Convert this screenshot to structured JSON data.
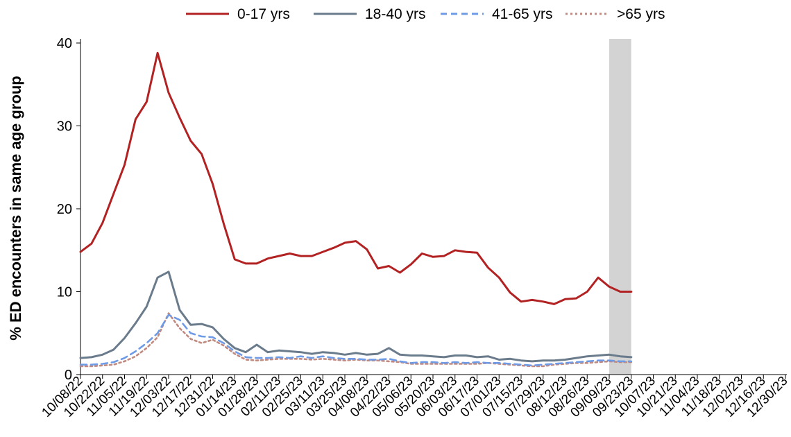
{
  "chart_data": {
    "type": "line",
    "title": "",
    "xlabel": "",
    "ylabel": "% ED encounters in same age group",
    "ylim": [
      0,
      40
    ],
    "yticks": [
      0,
      10,
      20,
      30,
      40
    ],
    "xlim": [
      "10/08/22",
      "12/30/23"
    ],
    "grid": false,
    "legend_position": "top",
    "highlight_band": {
      "from": "09/09/23",
      "to": "09/23/23",
      "color": "#d3d3d3"
    },
    "x_ticks": [
      "10/08/22",
      "10/22/22",
      "11/05/22",
      "11/19/22",
      "12/03/22",
      "12/17/22",
      "12/31/22",
      "01/14/23",
      "01/28/23",
      "02/11/23",
      "02/25/23",
      "03/11/23",
      "03/25/23",
      "04/08/23",
      "04/22/23",
      "05/06/23",
      "05/20/23",
      "06/03/23",
      "06/17/23",
      "07/01/23",
      "07/15/23",
      "07/29/23",
      "08/12/23",
      "08/26/23",
      "09/09/23",
      "09/23/23",
      "10/07/23",
      "10/21/23",
      "11/04/23",
      "11/18/23",
      "12/02/23",
      "12/16/23",
      "12/30/23"
    ],
    "x": [
      "10/08/22",
      "10/15/22",
      "10/22/22",
      "10/29/22",
      "11/05/22",
      "11/12/22",
      "11/19/22",
      "11/26/22",
      "12/03/22",
      "12/10/22",
      "12/17/22",
      "12/24/22",
      "12/31/22",
      "01/07/23",
      "01/14/23",
      "01/21/23",
      "01/28/23",
      "02/04/23",
      "02/11/23",
      "02/18/23",
      "02/25/23",
      "03/04/23",
      "03/11/23",
      "03/18/23",
      "03/25/23",
      "04/01/23",
      "04/08/23",
      "04/15/23",
      "04/22/23",
      "04/29/23",
      "05/06/23",
      "05/13/23",
      "05/20/23",
      "05/27/23",
      "06/03/23",
      "06/10/23",
      "06/17/23",
      "06/24/23",
      "07/01/23",
      "07/08/23",
      "07/15/23",
      "07/22/23",
      "07/29/23",
      "08/05/23",
      "08/12/23",
      "08/19/23",
      "08/26/23",
      "09/02/23",
      "09/09/23",
      "09/16/23",
      "09/23/23"
    ],
    "series": [
      {
        "name": "0-17 yrs",
        "color": "#b22222",
        "dash": "solid",
        "values": [
          14.8,
          15.8,
          18.3,
          21.8,
          25.3,
          30.8,
          32.9,
          38.8,
          34.0,
          31.0,
          28.2,
          26.6,
          23.0,
          18.2,
          13.9,
          13.4,
          13.4,
          14.0,
          14.3,
          14.6,
          14.3,
          14.3,
          14.8,
          15.3,
          15.9,
          16.1,
          15.1,
          12.8,
          13.1,
          12.3,
          13.3,
          14.6,
          14.2,
          14.3,
          15.0,
          14.8,
          14.7,
          12.9,
          11.7,
          9.9,
          8.8,
          9.0,
          8.8,
          8.5,
          9.1,
          9.2,
          10.0,
          11.7,
          10.6,
          10.0,
          10.0
        ]
      },
      {
        "name": "18-40 yrs",
        "color": "#6a7b8c",
        "dash": "solid",
        "values": [
          2.0,
          2.1,
          2.4,
          3.0,
          4.4,
          6.2,
          8.2,
          11.7,
          12.4,
          7.8,
          6.0,
          6.1,
          5.7,
          4.3,
          3.2,
          2.7,
          3.6,
          2.7,
          2.9,
          2.8,
          2.7,
          2.5,
          2.7,
          2.6,
          2.4,
          2.6,
          2.4,
          2.5,
          3.2,
          2.4,
          2.3,
          2.3,
          2.2,
          2.1,
          2.3,
          2.3,
          2.1,
          2.2,
          1.8,
          1.9,
          1.7,
          1.6,
          1.7,
          1.7,
          1.8,
          2.0,
          2.2,
          2.3,
          2.4,
          2.2,
          2.1
        ]
      },
      {
        "name": "41-65 yrs",
        "color": "#6f9be6",
        "dash": "dashed",
        "values": [
          1.2,
          1.2,
          1.3,
          1.5,
          2.0,
          2.8,
          3.8,
          5.0,
          7.2,
          6.6,
          5.0,
          4.6,
          4.5,
          3.8,
          2.8,
          2.1,
          2.0,
          2.0,
          2.1,
          2.0,
          2.2,
          2.0,
          2.2,
          2.0,
          1.9,
          1.9,
          1.8,
          1.8,
          1.9,
          1.6,
          1.4,
          1.5,
          1.5,
          1.4,
          1.5,
          1.4,
          1.5,
          1.4,
          1.4,
          1.3,
          1.2,
          1.1,
          1.2,
          1.3,
          1.4,
          1.5,
          1.6,
          1.7,
          1.7,
          1.6,
          1.6
        ]
      },
      {
        "name": ">65 yrs",
        "color": "#c08a80",
        "dash": "dotted",
        "values": [
          1.0,
          1.0,
          1.1,
          1.2,
          1.6,
          2.2,
          3.2,
          4.5,
          7.4,
          5.6,
          4.3,
          3.8,
          4.2,
          3.5,
          2.5,
          1.8,
          1.7,
          1.8,
          1.9,
          1.9,
          1.9,
          1.8,
          1.9,
          1.8,
          1.7,
          1.8,
          1.7,
          1.7,
          1.6,
          1.5,
          1.3,
          1.3,
          1.3,
          1.3,
          1.3,
          1.3,
          1.3,
          1.4,
          1.3,
          1.2,
          1.1,
          1.0,
          1.0,
          1.2,
          1.3,
          1.4,
          1.4,
          1.5,
          1.6,
          1.5,
          1.5
        ]
      }
    ]
  }
}
